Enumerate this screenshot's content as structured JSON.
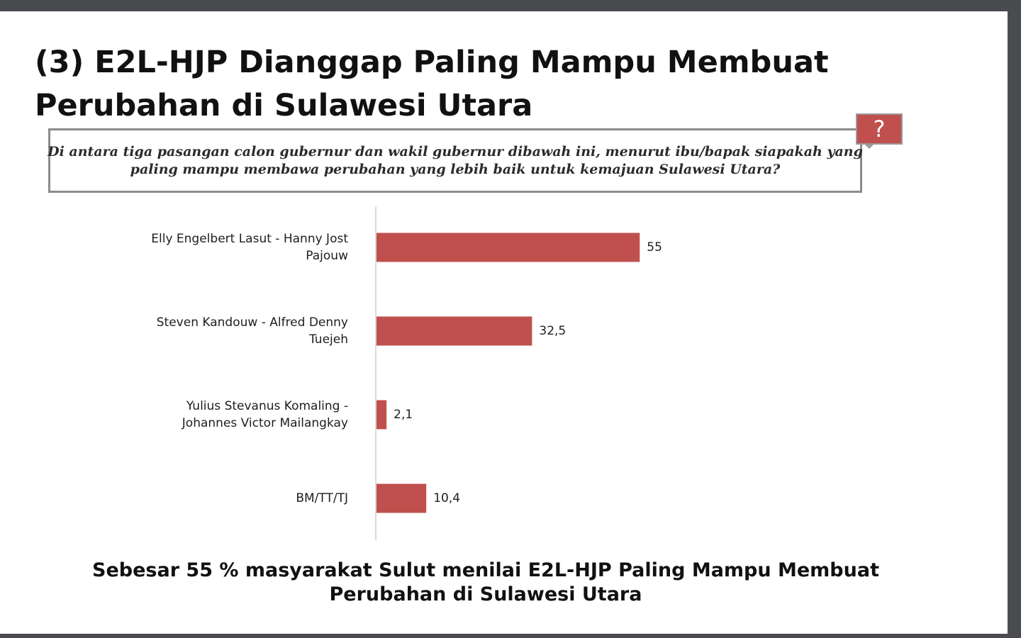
{
  "slide": {
    "title_lines": [
      "(3) E2L-HJP Dianggap Paling Mampu Membuat",
      "Perubahan di Sulawesi Utara"
    ],
    "question_lines": [
      "Di antara tiga pasangan calon gubernur dan wakil gubernur dibawah ini, menurut ibu/bapak siapakah yang",
      "paling mampu membawa perubahan yang lebih baik untuk kemajuan Sulawesi Utara?"
    ],
    "badge_symbol": "?",
    "conclusion_lines": [
      "Sebesar 55 % masyarakat Sulut menilai E2L-HJP Paling Mampu Membuat",
      "Perubahan di Sulawesi Utara"
    ]
  },
  "colors": {
    "bar": "#c0504d",
    "badge": "#c0504d",
    "axis": "#d9d9d9"
  },
  "chart_data": {
    "type": "bar",
    "orientation": "horizontal",
    "categories": [
      [
        "Elly Engelbert Lasut - Hanny Jost",
        "Pajouw"
      ],
      [
        "Steven Kandouw - Alfred Denny",
        "Tuejeh"
      ],
      [
        "Yulius Stevanus Komaling -",
        "Johannes Victor Mailangkay"
      ],
      [
        "BM/TT/TJ"
      ]
    ],
    "values": [
      55,
      32.5,
      2.1,
      10.4
    ],
    "value_labels": [
      "55",
      "32,5",
      "2,1",
      "10,4"
    ],
    "xlim": [
      0,
      100
    ],
    "grid": false,
    "legend": "none"
  }
}
